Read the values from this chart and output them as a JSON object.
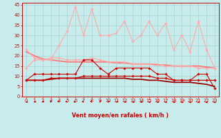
{
  "background_color": "#c8ecec",
  "grid_color": "#a0cccc",
  "axis_color": "#cc0000",
  "xlabel": "Vent moyen/en rafales ( km/h )",
  "xlabel_fontsize": 5.8,
  "tick_fontsize": 4.8,
  "xlim": [
    -0.5,
    23.5
  ],
  "ylim": [
    0,
    46
  ],
  "yticks": [
    0,
    5,
    10,
    15,
    20,
    25,
    30,
    35,
    40,
    45
  ],
  "xticks": [
    0,
    1,
    2,
    3,
    4,
    5,
    6,
    7,
    8,
    9,
    10,
    11,
    12,
    13,
    14,
    15,
    16,
    17,
    18,
    19,
    20,
    21,
    22,
    23
  ],
  "x": [
    0,
    1,
    2,
    3,
    4,
    5,
    6,
    7,
    8,
    9,
    10,
    11,
    12,
    13,
    14,
    15,
    16,
    17,
    18,
    19,
    20,
    21,
    22,
    23
  ],
  "lines": [
    {
      "color": "#ffaaaa",
      "lw": 0.8,
      "marker": "*",
      "ms": 3.0,
      "zorder": 4,
      "y": [
        23,
        19,
        18,
        18,
        25,
        32,
        44,
        30,
        43,
        30,
        30,
        31,
        37,
        27,
        30,
        37,
        30,
        36,
        23,
        30,
        22,
        37,
        23,
        14
      ]
    },
    {
      "color": "#ffaaaa",
      "lw": 0.9,
      "marker": "D",
      "ms": 1.8,
      "zorder": 4,
      "y": [
        14,
        18,
        18,
        19,
        19,
        18,
        18,
        18,
        19,
        18,
        17,
        17,
        17,
        16,
        16,
        16,
        16,
        15,
        15,
        15,
        15,
        14,
        14,
        14
      ]
    },
    {
      "color": "#ff7777",
      "lw": 1.3,
      "marker": null,
      "ms": 0,
      "zorder": 3,
      "y": [
        22,
        20,
        18.5,
        18,
        17.5,
        17,
        17,
        17,
        17,
        17,
        17,
        16.5,
        16.5,
        16,
        16,
        16,
        15.5,
        15.5,
        15,
        15,
        15,
        15,
        14.5,
        14
      ]
    },
    {
      "color": "#cc0000",
      "lw": 0.8,
      "marker": "D",
      "ms": 1.8,
      "zorder": 5,
      "y": [
        8,
        11,
        11,
        11,
        11,
        11,
        11,
        18,
        18,
        14,
        11,
        14,
        14,
        14,
        14,
        14,
        11,
        11,
        8,
        8,
        8,
        11,
        11,
        4
      ]
    },
    {
      "color": "#cc0000",
      "lw": 0.9,
      "marker": "D",
      "ms": 1.8,
      "zorder": 5,
      "y": [
        8,
        8,
        8,
        9,
        9,
        9,
        9,
        10,
        10,
        10,
        10,
        10,
        10,
        10,
        10,
        10,
        9,
        9,
        8,
        8,
        8,
        8,
        8,
        8
      ]
    },
    {
      "color": "#990000",
      "lw": 1.3,
      "marker": null,
      "ms": 0,
      "zorder": 3,
      "y": [
        8,
        8,
        8,
        8.5,
        9,
        9,
        9,
        9,
        9,
        9,
        9,
        9,
        9,
        8.5,
        8.5,
        8,
        8,
        7.5,
        7,
        7,
        7,
        6.5,
        6,
        5
      ]
    }
  ],
  "arrow_angles_deg": [
    210,
    200,
    195,
    180,
    170,
    165,
    160,
    165,
    170,
    185,
    195,
    200,
    205,
    210,
    215,
    220,
    225,
    228,
    232,
    238,
    242,
    248,
    255,
    268
  ]
}
